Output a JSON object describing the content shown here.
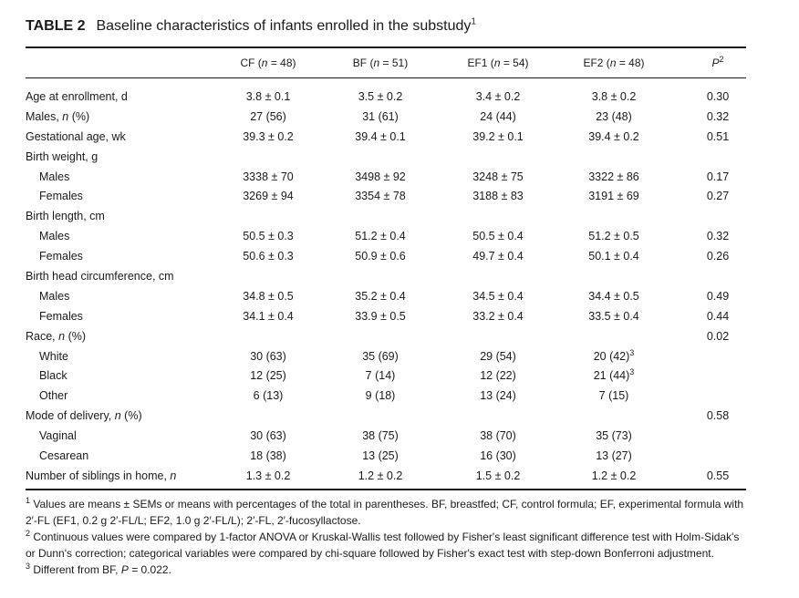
{
  "title": {
    "label": "TABLE 2",
    "text": "Baseline characteristics of infants enrolled in the substudy",
    "sup": "1"
  },
  "columns": [
    {
      "name": "CF",
      "n": "48"
    },
    {
      "name": "BF",
      "n": "51"
    },
    {
      "name": "EF1",
      "n": "54"
    },
    {
      "name": "EF2",
      "n": "48"
    }
  ],
  "pcol": {
    "label": "P",
    "sup": "2"
  },
  "n_prefix": "(",
  "n_eq": " = ",
  "n_suffix": ")",
  "n_var": "n",
  "rows": [
    {
      "label": "Age at enrollment, d",
      "sub": false,
      "values": [
        "3.8 ± 0.1",
        "3.5 ± 0.2",
        "3.4 ± 0.2",
        "3.8 ± 0.2"
      ],
      "p": "0.30"
    },
    {
      "label_pre": "Males, ",
      "label_italic": "n",
      "label_post": " (%)",
      "sub": false,
      "values": [
        "27 (56)",
        "31 (61)",
        "24 (44)",
        "23 (48)"
      ],
      "p": "0.32"
    },
    {
      "label": "Gestational age, wk",
      "sub": false,
      "values": [
        "39.3 ± 0.2",
        "39.4 ± 0.1",
        "39.2 ± 0.1",
        "39.4 ± 0.2"
      ],
      "p": "0.51"
    },
    {
      "label": "Birth weight, g",
      "sub": false,
      "values": [
        "",
        "",
        "",
        ""
      ],
      "p": ""
    },
    {
      "label": "Males",
      "sub": true,
      "values": [
        "3338 ± 70",
        "3498 ± 92",
        "3248 ± 75",
        "3322 ± 86"
      ],
      "p": "0.17"
    },
    {
      "label": "Females",
      "sub": true,
      "values": [
        "3269 ± 94",
        "3354 ± 78",
        "3188 ± 83",
        "3191 ± 69"
      ],
      "p": "0.27"
    },
    {
      "label": "Birth length, cm",
      "sub": false,
      "values": [
        "",
        "",
        "",
        ""
      ],
      "p": ""
    },
    {
      "label": "Males",
      "sub": true,
      "values": [
        "50.5 ± 0.3",
        "51.2 ± 0.4",
        "50.5 ± 0.4",
        "51.2 ± 0.5"
      ],
      "p": "0.32"
    },
    {
      "label": "Females",
      "sub": true,
      "values": [
        "50.6 ± 0.3",
        "50.9 ± 0.6",
        "49.7 ± 0.4",
        "50.1 ± 0.4"
      ],
      "p": "0.26"
    },
    {
      "label": "Birth head circumference, cm",
      "sub": false,
      "values": [
        "",
        "",
        "",
        ""
      ],
      "p": ""
    },
    {
      "label": "Males",
      "sub": true,
      "values": [
        "34.8 ± 0.5",
        "35.2 ± 0.4",
        "34.5 ± 0.4",
        "34.4 ± 0.5"
      ],
      "p": "0.49"
    },
    {
      "label": "Females",
      "sub": true,
      "values": [
        "34.1 ± 0.4",
        "33.9 ± 0.5",
        "33.2 ± 0.4",
        "33.5 ± 0.4"
      ],
      "p": "0.44"
    },
    {
      "label_pre": "Race, ",
      "label_italic": "n",
      "label_post": " (%)",
      "sub": false,
      "values": [
        "",
        "",
        "",
        ""
      ],
      "p": "0.02"
    },
    {
      "label": "White",
      "sub": true,
      "values": [
        "30 (63)",
        "35 (69)",
        "29 (54)",
        "20 (42)"
      ],
      "sups": [
        "",
        "",
        "",
        "3"
      ],
      "p": ""
    },
    {
      "label": "Black",
      "sub": true,
      "values": [
        "12 (25)",
        "7 (14)",
        "12 (22)",
        "21 (44)"
      ],
      "sups": [
        "",
        "",
        "",
        "3"
      ],
      "p": ""
    },
    {
      "label": "Other",
      "sub": true,
      "values": [
        "6 (13)",
        "9 (18)",
        "13 (24)",
        "7 (15)"
      ],
      "p": ""
    },
    {
      "label_pre": "Mode of delivery, ",
      "label_italic": "n",
      "label_post": " (%)",
      "sub": false,
      "values": [
        "",
        "",
        "",
        ""
      ],
      "p": "0.58"
    },
    {
      "label": "Vaginal",
      "sub": true,
      "values": [
        "30 (63)",
        "38 (75)",
        "38 (70)",
        "35 (73)"
      ],
      "p": ""
    },
    {
      "label": "Cesarean",
      "sub": true,
      "values": [
        "18 (38)",
        "13 (25)",
        "16 (30)",
        "13 (27)"
      ],
      "p": ""
    },
    {
      "label_pre": "Number of siblings in home, ",
      "label_italic": "n",
      "label_post": "",
      "sub": false,
      "values": [
        "1.3 ± 0.2",
        "1.2 ± 0.2",
        "1.5 ± 0.2",
        "1.2 ± 0.2"
      ],
      "p": "0.55"
    }
  ],
  "footnotes": [
    {
      "sup": "1",
      "text": "Values are means ± SEMs or means with percentages of the total in parentheses. BF, breastfed; CF, control formula; EF, experimental formula with 2′-FL (EF1, 0.2 g 2′-FL/L; EF2, 1.0 g 2′-FL/L); 2′-FL, 2′-fucosyllactose."
    },
    {
      "sup": "2",
      "text": "Continuous values were compared by 1-factor ANOVA or Kruskal-Wallis test followed by Fisher's least significant difference test with Holm-Sidak's or Dunn's correction; categorical variables were compared by chi-square followed by Fisher's exact test with step-down Bonferroni adjustment."
    },
    {
      "sup": "3",
      "text_pre": "Different from BF, ",
      "text_italic": "P",
      "text_post": " = 0.022."
    }
  ]
}
